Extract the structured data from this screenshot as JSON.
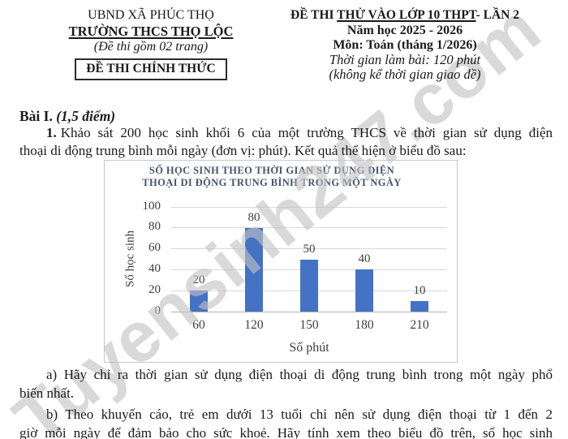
{
  "header": {
    "left": {
      "line1": "UBND XÃ PHÚC THỌ",
      "line2": "TRƯỜNG THCS THỌ LỘC",
      "line3": "(Đề thi gồm 02 trang)",
      "box_label": "ĐỀ THI CHÍNH THỨC"
    },
    "right": {
      "line1_pre": "ĐỀ THI ",
      "line1_underlined": "THỬ VÀO LỚP 10 THPT",
      "line1_post": "- LẦN 2",
      "line2": "Năm học 2025 - 2026",
      "line3": "Môn: Toán (tháng 1/2026)",
      "line4": "Thời gian làm bài: 120 phút",
      "line5": "(không kể thời gian giao đề)"
    }
  },
  "body": {
    "section_label": "Bài I. ",
    "section_points": "(1,5 điểm)",
    "q1": {
      "num": "1.",
      "line1": "Khảo sát 200 học sinh khối 6 của một trường THCS về thời gian sử dụng điện",
      "line2": "thoại di động trung bình mỗi ngày (đơn vị: phút). Kết quả thể hiện ở biểu đồ sau:"
    },
    "qa": {
      "line1": "a) Hãy chỉ ra thời gian sử dụng điện thoại di động trung bình trong một ngày phổ",
      "line2": "biến nhất."
    },
    "qb": {
      "line1": "b) Theo khuyến cáo, trẻ em dưới 13 tuổi chỉ nên sử dụng điện thoại từ 1 đến 2",
      "line2": "giờ mỗi ngày để đảm bảo cho sức khoẻ. Hãy tính xem theo biểu đồ trên, số học sinh"
    }
  },
  "chart_data": {
    "type": "bar",
    "title_lines": [
      "SỐ HỌC SINH THEO THỜI GIAN SỬ DỤNG ĐIỆN",
      "THOẠI DI ĐỘNG TRUNG BÌNH TRONG MỘT NGÀY"
    ],
    "categories": [
      "60",
      "120",
      "150",
      "180",
      "210"
    ],
    "values": [
      20,
      80,
      50,
      40,
      10
    ],
    "xlabel": "Số phút",
    "ylabel": "Số học sinh",
    "ylim": [
      0,
      100
    ],
    "yticks": [
      0,
      20,
      40,
      60,
      80,
      100
    ],
    "grid": true,
    "legend": false,
    "bar_color": "#4472C4",
    "title_color": "#44546A",
    "gridline_color": "#d9d9d9",
    "axis_text_color": "#3d3d3d"
  },
  "watermark": {
    "text": "Tuyensinh247.com"
  }
}
